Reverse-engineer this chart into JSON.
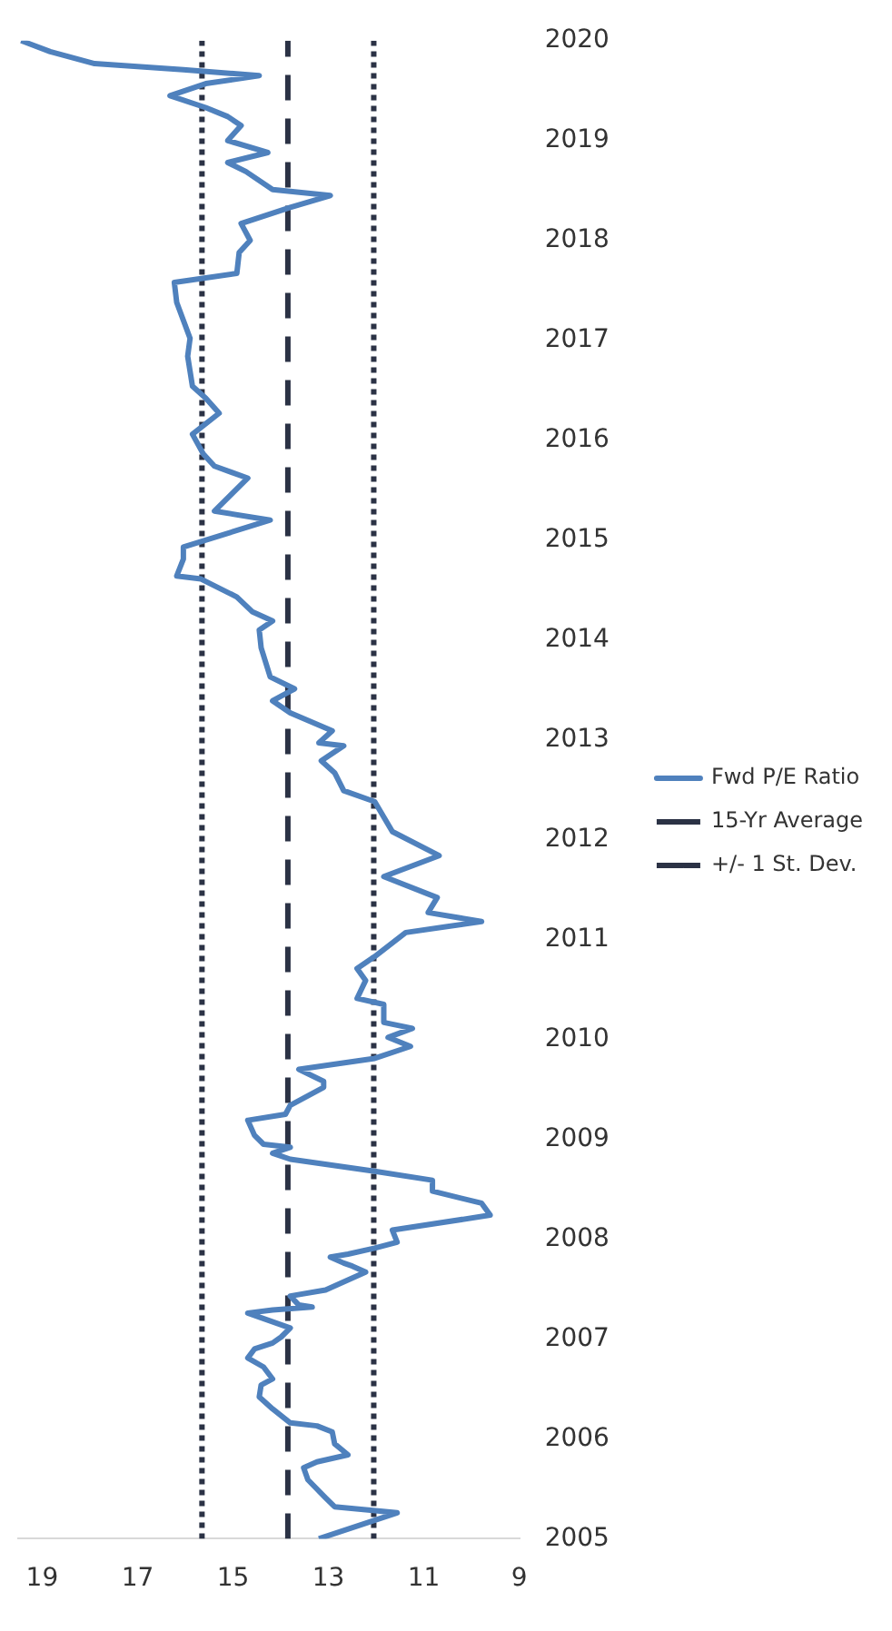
{
  "chart_data": {
    "type": "line",
    "xlim": [
      19.5,
      9
    ],
    "xticks": [
      19,
      17,
      15,
      13,
      11,
      9
    ],
    "ylim": [
      2005,
      2020
    ],
    "yticks": [
      2005,
      2006,
      2007,
      2008,
      2009,
      2010,
      2011,
      2012,
      2013,
      2014,
      2015,
      2016,
      2017,
      2018,
      2019,
      2020
    ],
    "legend": "right",
    "marker": "none",
    "series": [
      {
        "name": "Fwd P/E Ratio",
        "color": "#4f81bd",
        "line_style": "solid",
        "values": [
          2005.0,
          2005.26,
          2005.32,
          2005.41,
          2005.59,
          2005.71,
          2005.77,
          2005.84,
          2005.95,
          2006.07,
          2006.13,
          2006.16,
          2006.3,
          2006.42,
          2006.54,
          2006.6,
          2006.72,
          2006.81,
          2006.9,
          2006.96,
          2007.02,
          2007.11,
          2007.26,
          2007.29,
          2007.32,
          2007.34,
          2007.43,
          2007.49,
          2007.67,
          2007.73,
          2007.76,
          2007.82,
          2007.85,
          2007.91,
          2007.97,
          2008.09,
          2008.24,
          2008.36,
          2008.48,
          2008.59,
          2008.68,
          2008.8,
          2008.86,
          2008.92,
          2008.95,
          2009.04,
          2009.19,
          2009.25,
          2009.34,
          2009.52,
          2009.58,
          2009.7,
          2009.81,
          2009.93,
          2010.02,
          2010.11,
          2010.17,
          2010.35,
          2010.41,
          2010.59,
          2010.71,
          2010.83,
          2011.07,
          2011.18,
          2011.27,
          2011.42,
          2011.63,
          2011.84,
          2012.08,
          2012.38,
          2012.49,
          2012.67,
          2012.79,
          2012.94,
          2012.97,
          2013.09,
          2013.27,
          2013.39,
          2013.51,
          2013.63,
          2013.92,
          2014.1,
          2014.19,
          2014.28,
          2014.43,
          2014.61,
          2014.64,
          2014.81,
          2014.93,
          2015.2,
          2015.29,
          2015.62,
          2015.74,
          2015.86,
          2016.06,
          2016.27,
          2016.42,
          2016.54,
          2016.84,
          2017.02,
          2017.2,
          2017.38,
          2017.58,
          2017.67,
          2017.88,
          2018.0,
          2018.17,
          2018.33,
          2018.45,
          2018.51,
          2018.69,
          2018.78,
          2018.88,
          2019.0,
          2019.15,
          2019.24,
          2019.33,
          2019.45,
          2019.57,
          2019.65,
          2019.71,
          2019.77,
          2019.89,
          2020.0
        ],
        "x": [
          13.2,
          11.56,
          12.87,
          13.06,
          13.43,
          13.52,
          13.24,
          12.59,
          12.87,
          12.92,
          13.24,
          13.8,
          14.17,
          14.45,
          14.41,
          14.17,
          14.36,
          14.69,
          14.55,
          14.17,
          13.99,
          13.8,
          14.69,
          14.17,
          13.34,
          13.62,
          13.8,
          13.06,
          12.22,
          12.5,
          12.68,
          12.96,
          12.59,
          12.03,
          11.56,
          11.66,
          9.61,
          9.79,
          10.82,
          10.82,
          12.03,
          13.8,
          14.17,
          13.8,
          14.36,
          14.55,
          14.69,
          13.9,
          13.8,
          13.1,
          13.1,
          13.62,
          12.03,
          11.28,
          11.75,
          11.24,
          11.84,
          11.84,
          12.4,
          12.22,
          12.4,
          12.03,
          11.38,
          9.79,
          10.91,
          10.72,
          11.84,
          10.68,
          11.66,
          12.03,
          12.68,
          12.87,
          13.15,
          12.68,
          13.2,
          12.92,
          13.8,
          14.17,
          13.71,
          14.22,
          14.41,
          14.45,
          14.17,
          14.59,
          14.92,
          15.67,
          16.18,
          16.04,
          16.04,
          14.22,
          15.39,
          14.69,
          15.39,
          15.62,
          15.85,
          15.29,
          15.57,
          15.85,
          15.95,
          15.9,
          16.04,
          16.18,
          16.23,
          14.92,
          14.87,
          14.64,
          14.83,
          13.8,
          12.96,
          14.17,
          14.73,
          15.11,
          14.27,
          15.11,
          14.83,
          15.11,
          15.57,
          16.32,
          15.57,
          14.45,
          16.04,
          17.9,
          18.83,
          19.44
        ]
      },
      {
        "name": "15-Yr Average",
        "color": "#2b3245",
        "line_style": "dashed",
        "x": [
          13.85,
          13.85
        ],
        "values": [
          2005,
          2020
        ]
      },
      {
        "name": "+/- 1 St. Dev.",
        "color": "#2b3245",
        "line_style": "dotted",
        "x": [
          15.65,
          15.65
        ],
        "values": [
          2005,
          2020
        ]
      },
      {
        "color": "#2b3245",
        "line_style": "dotted",
        "x": [
          12.05,
          12.05
        ],
        "values": [
          2005,
          2020
        ]
      }
    ]
  }
}
